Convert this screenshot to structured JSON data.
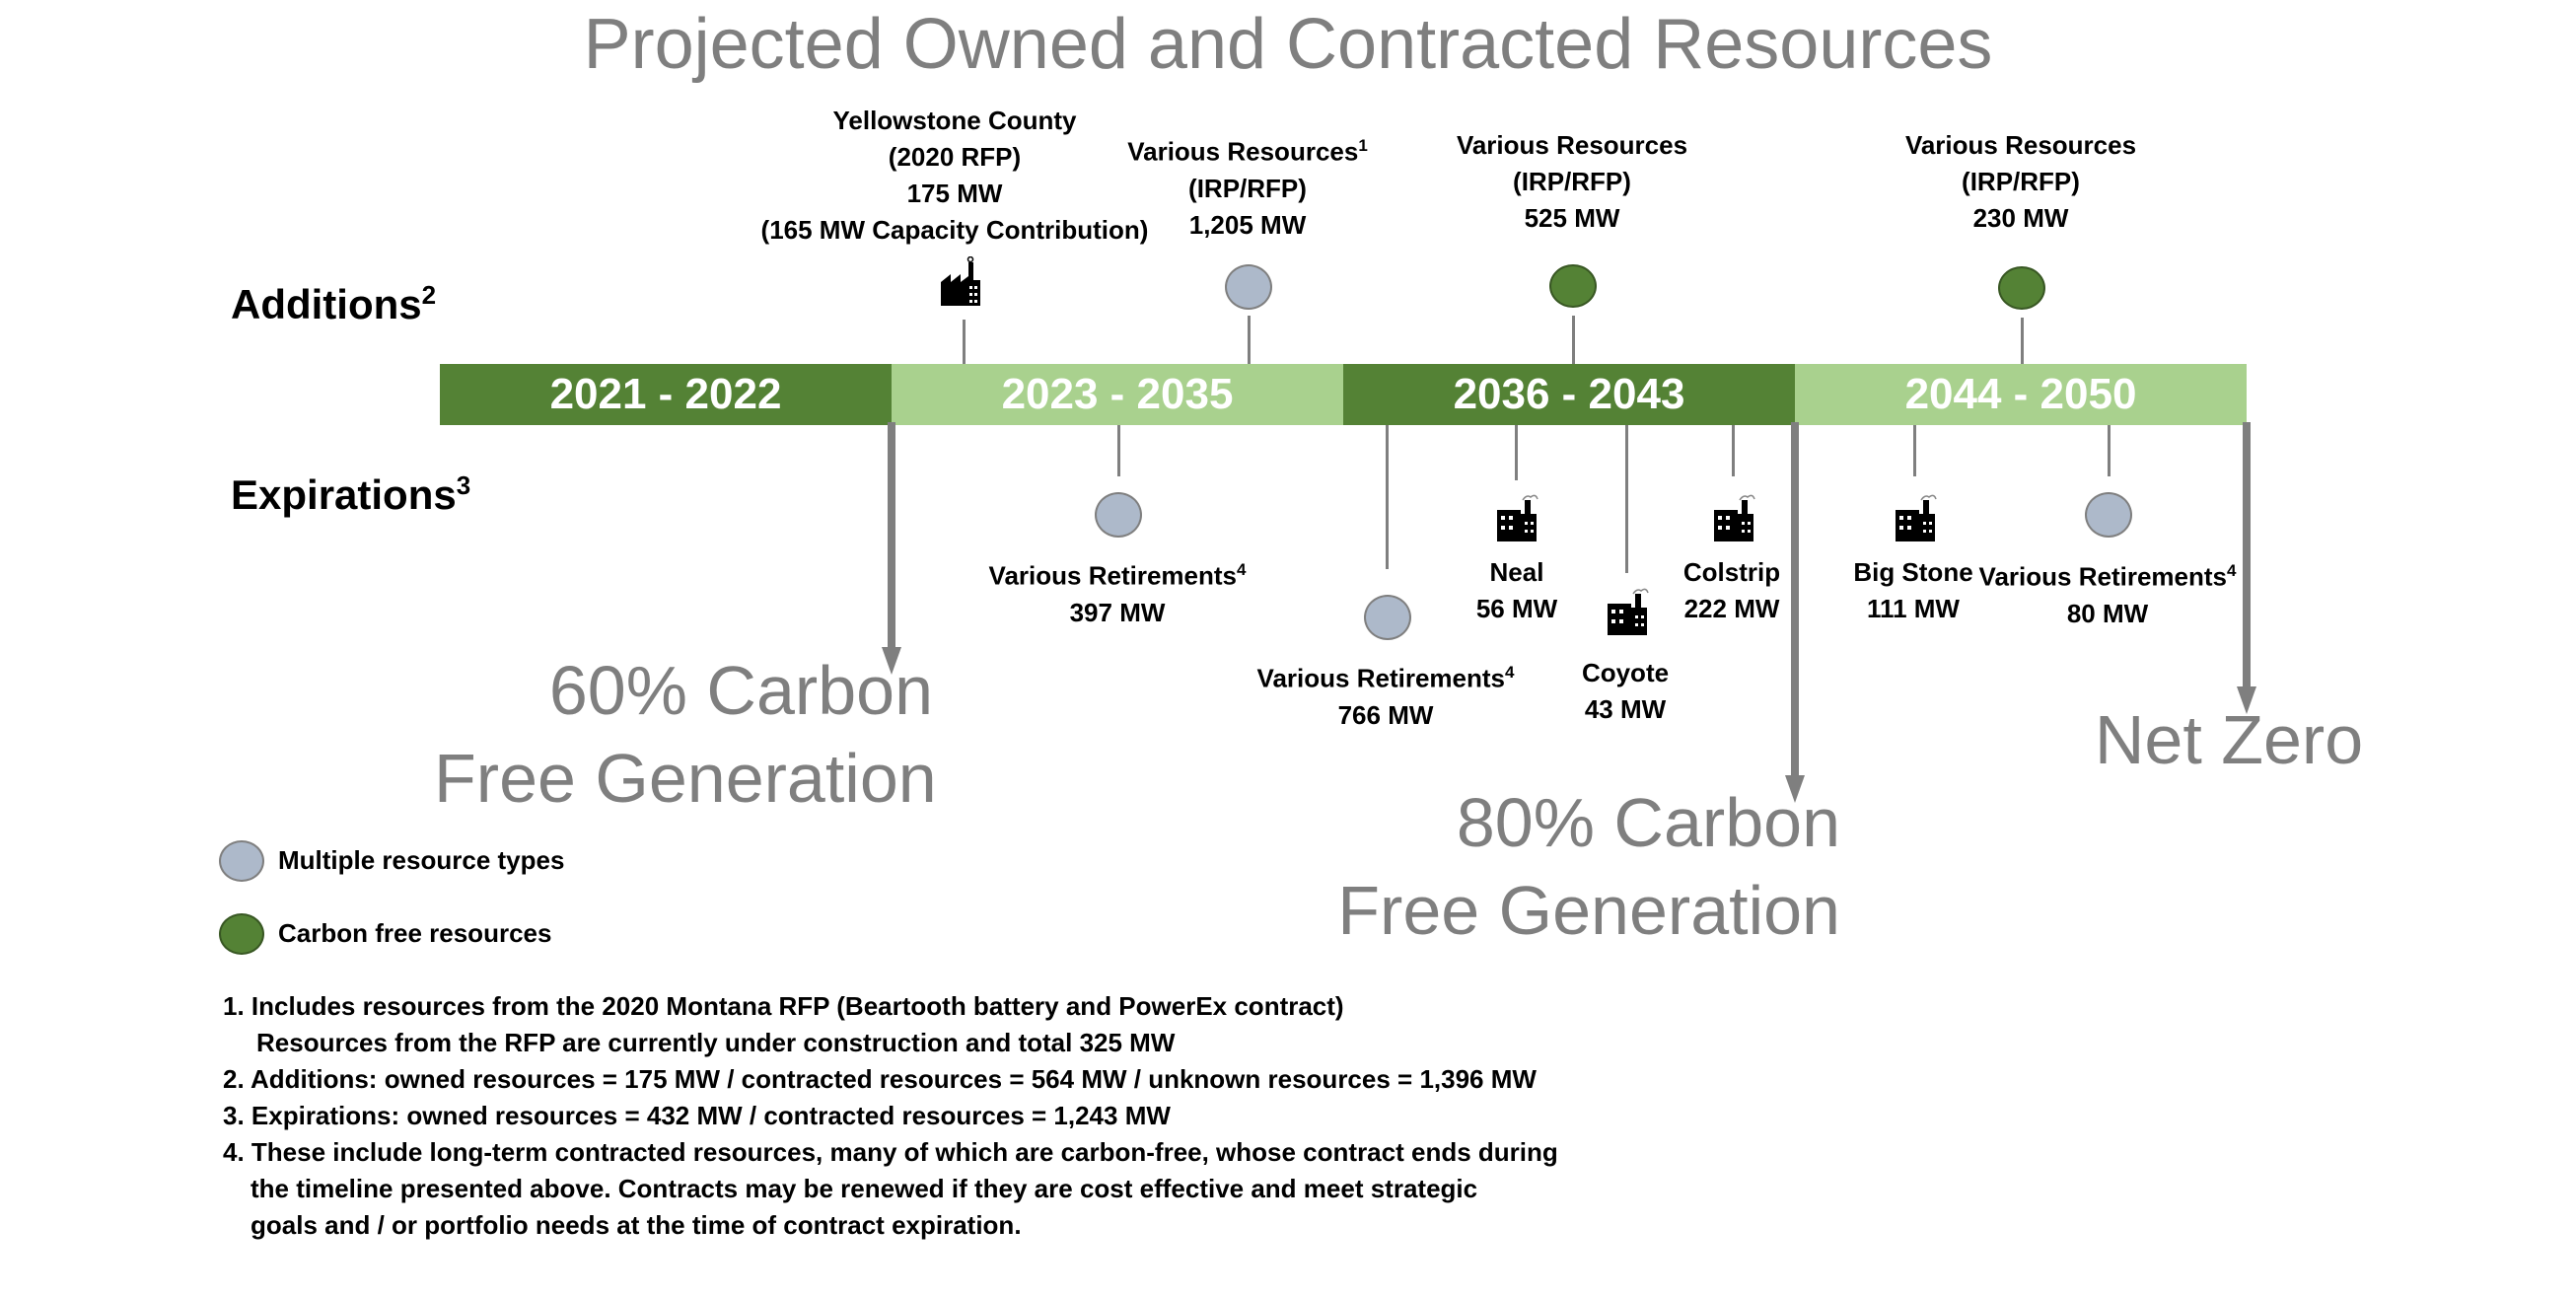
{
  "title": "Projected Owned and Contracted Resources",
  "rows": {
    "additions": "Additions",
    "additions_sup": "2",
    "expirations": "Expirations",
    "expirations_sup": "3"
  },
  "periods": [
    "2021 - 2022",
    "2023 - 2035",
    "2036 - 2043",
    "2044 - 2050"
  ],
  "additions": [
    {
      "lines": [
        "Yellowstone County",
        "(2020 RFP)",
        "175 MW",
        "(165 MW Capacity Contribution)"
      ],
      "icon": "factory-icon"
    },
    {
      "lines": [
        "Various Resources",
        "(IRP/RFP)",
        "1,205 MW"
      ],
      "sup": "1",
      "icon": "multiple-resource-circle"
    },
    {
      "lines": [
        "Various Resources",
        "(IRP/RFP)",
        "525 MW"
      ],
      "icon": "carbon-free-circle"
    },
    {
      "lines": [
        "Various Resources",
        "(IRP/RFP)",
        "230 MW"
      ],
      "icon": "carbon-free-circle"
    }
  ],
  "expirations": [
    {
      "lines": [
        "Various Retirements",
        "397 MW"
      ],
      "sup": "4",
      "icon": "multiple-resource-circle"
    },
    {
      "lines": [
        "Various Retirements",
        "766 MW"
      ],
      "sup": "4",
      "icon": "multiple-resource-circle"
    },
    {
      "lines": [
        "Neal",
        "56 MW"
      ],
      "icon": "factory-icon"
    },
    {
      "lines": [
        "Coyote",
        "43 MW"
      ],
      "icon": "factory-icon"
    },
    {
      "lines": [
        "Colstrip",
        "222 MW"
      ],
      "icon": "factory-icon"
    },
    {
      "lines": [
        "Big Stone",
        "111 MW"
      ],
      "icon": "factory-icon"
    },
    {
      "lines": [
        "Various Retirements",
        "80 MW"
      ],
      "sup": "4",
      "icon": "multiple-resource-circle"
    }
  ],
  "goals": [
    {
      "line1": "60% Carbon",
      "line2": "Free Generation"
    },
    {
      "line1": "80% Carbon",
      "line2": "Free Generation"
    },
    {
      "line1": "Net Zero",
      "line2": ""
    }
  ],
  "legend": {
    "multiple": "Multiple resource types",
    "carbon_free": "Carbon free resources"
  },
  "notes": [
    "1. Includes resources from the 2020 Montana RFP (Beartooth battery and PowerEx contract)",
    "Resources from the RFP are currently under construction and total 325 MW",
    "2. Additions: owned resources = 175 MW / contracted resources = 564 MW / unknown resources = 1,396 MW",
    "3. Expirations: owned resources = 432 MW / contracted resources = 1,243 MW",
    "4. These include long-term contracted resources, many of which are carbon-free, whose contract ends during",
    "the timeline presented above.  Contracts may be renewed if they are cost effective and meet strategic",
    "goals and / or portfolio needs at the time of contract expiration."
  ],
  "colors": {
    "dark_green": "#548235",
    "light_green": "#a9d18e",
    "gray_circle": "#adb9ca",
    "gray_text": "#7f7f7f"
  }
}
